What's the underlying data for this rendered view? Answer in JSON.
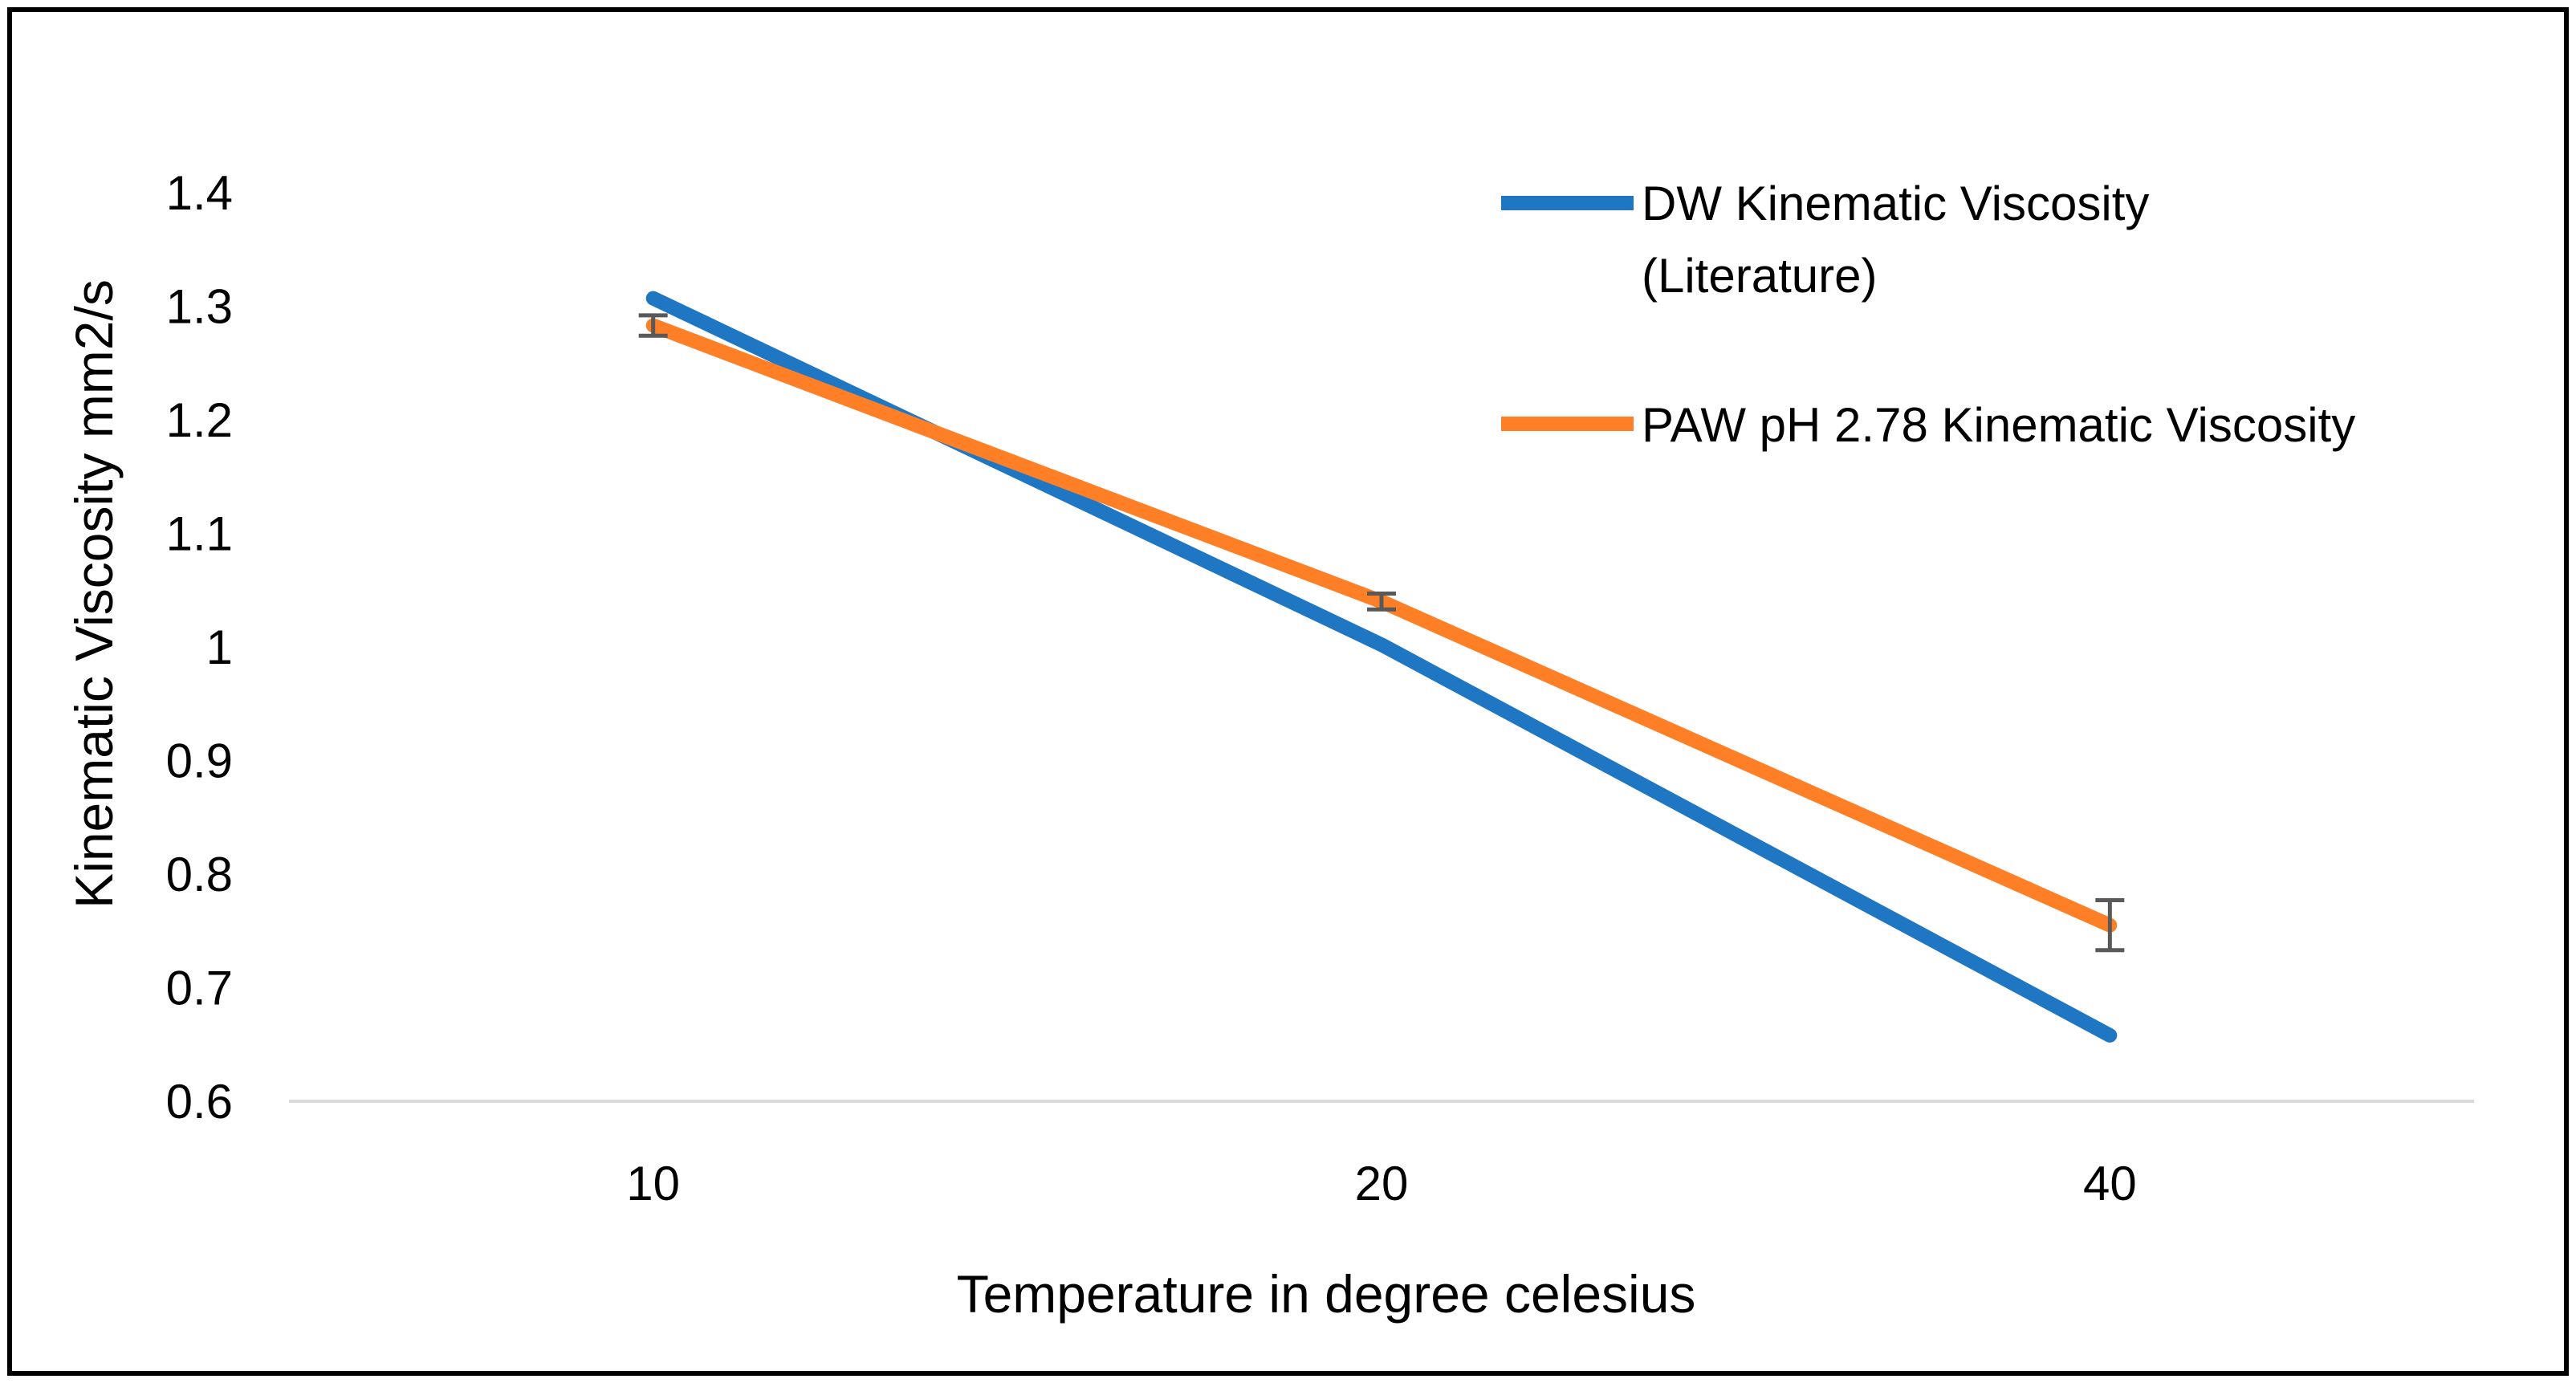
{
  "chart_data": {
    "type": "line",
    "title": "",
    "xlabel": "Temperature in degree celesius",
    "ylabel": "Kinematic Viscosity mm2/s",
    "categories": [
      "10",
      "20",
      "40"
    ],
    "ylim": [
      0.6,
      1.4
    ],
    "yticks": [
      "0.6",
      "0.7",
      "0.8",
      "0.9",
      "1",
      "1.1",
      "1.2",
      "1.3",
      "1.4"
    ],
    "grid": false,
    "legend_position": "top-right",
    "series": [
      {
        "name": "DW Kinematic Viscosity",
        "name_line2": "(Literature)",
        "values": [
          1.307,
          1.002,
          0.658
        ],
        "color": "#1f77c4"
      },
      {
        "name": "PAW pH 2.78 Kinematic Viscosity",
        "values": [
          1.283,
          1.04,
          0.755
        ],
        "error": [
          0.009,
          0.007,
          0.022
        ],
        "color": "#ff7f27"
      }
    ]
  }
}
